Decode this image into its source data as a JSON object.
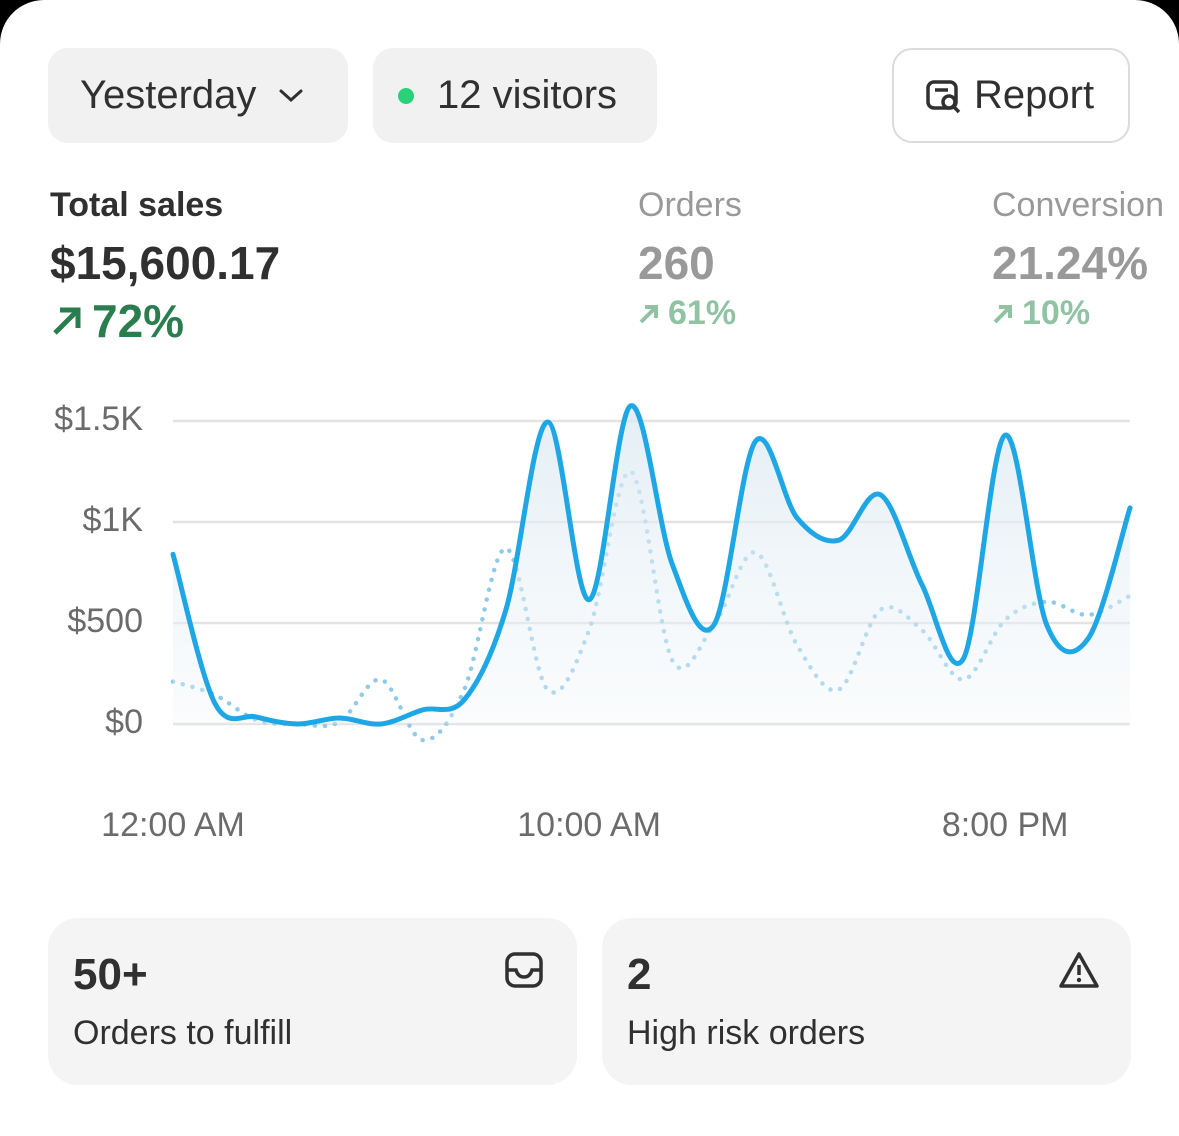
{
  "controls": {
    "period": "Yesterday",
    "visitors": "12 visitors",
    "report": "Report"
  },
  "metrics": [
    {
      "label": "Total sales",
      "value": "$15,600.17",
      "change": "72%"
    },
    {
      "label": "Orders",
      "value": "260",
      "change": "61%"
    },
    {
      "label": "Conversion",
      "value": "21.24%",
      "change": "10%"
    }
  ],
  "chart_data": {
    "type": "line",
    "categories": [
      "12:00 AM",
      null,
      null,
      null,
      null,
      null,
      null,
      null,
      null,
      null,
      "10:00 AM",
      null,
      null,
      null,
      null,
      null,
      null,
      null,
      null,
      null,
      "8:00 PM",
      null,
      null,
      null
    ],
    "series": [
      {
        "color": "#1ea7e4",
        "values": [
          840,
          105,
          35,
          0,
          30,
          0,
          70,
          120,
          565,
          1495,
          615,
          1575,
          790,
          490,
          1400,
          1020,
          910,
          1135,
          690,
          325,
          1430,
          490,
          425,
          1070
        ]
      },
      {
        "color": "#8fcbe8",
        "values": [
          210,
          145,
          20,
          0,
          10,
          220,
          -80,
          170,
          870,
          170,
          465,
          1250,
          315,
          490,
          850,
          390,
          170,
          565,
          465,
          220,
          515,
          605,
          540,
          635
        ]
      }
    ],
    "ylim": [
      0,
      1500
    ],
    "yticks": [
      {
        "value": 0,
        "label": "$0"
      },
      {
        "value": 500,
        "label": "$500"
      },
      {
        "value": 1000,
        "label": "$1K"
      },
      {
        "value": 1500,
        "label": "$1.5K"
      }
    ],
    "grid": true
  },
  "cards": [
    {
      "value": "50+",
      "label": "Orders to fulfill"
    },
    {
      "value": "2",
      "label": "High risk orders"
    }
  ]
}
